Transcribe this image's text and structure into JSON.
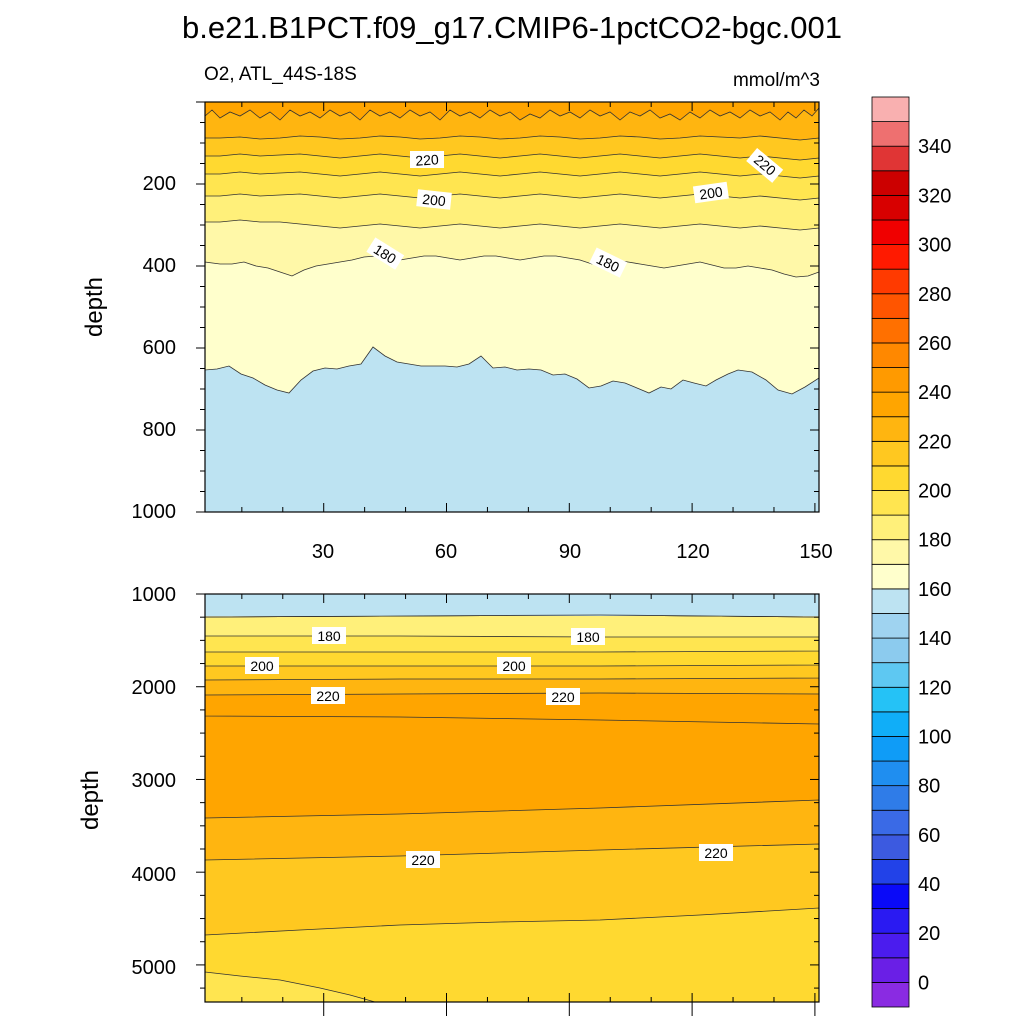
{
  "chart_data": {
    "type": "contour",
    "title": "b.e21.B1PCT.f09_g17.CMIP6-1pctCO2-bgc.001",
    "left_subtitle": "O2, ATL_44S-18S",
    "right_subtitle": "mmol/m^3",
    "ylabel": "depth",
    "xlabel": "",
    "x_ticks": [
      "30",
      "60",
      "90",
      "120",
      "150"
    ],
    "xlim": [
      1,
      151
    ],
    "panels": [
      {
        "name": "upper",
        "ylim": [
          0,
          1000
        ],
        "y_ticks": [
          "200",
          "400",
          "600",
          "800",
          "1000"
        ],
        "inline_labels": [
          "220",
          "220",
          "200",
          "200",
          "180",
          "180"
        ]
      },
      {
        "name": "lower",
        "ylim": [
          1000,
          5400
        ],
        "y_ticks": [
          "1000",
          "2000",
          "3000",
          "4000",
          "5000"
        ],
        "inline_labels": [
          "180",
          "180",
          "200",
          "200",
          "220",
          "220",
          "220",
          "220"
        ]
      }
    ],
    "colorbar": {
      "tick_labels": [
        "0",
        "20",
        "40",
        "60",
        "80",
        "100",
        "120",
        "140",
        "160",
        "180",
        "200",
        "220",
        "240",
        "260",
        "280",
        "300",
        "320",
        "340"
      ],
      "levels": [
        -10,
        0,
        10,
        20,
        30,
        40,
        50,
        60,
        70,
        80,
        90,
        100,
        110,
        120,
        130,
        140,
        150,
        160,
        170,
        180,
        190,
        200,
        210,
        220,
        230,
        240,
        250,
        260,
        270,
        280,
        290,
        300,
        310,
        320,
        330,
        340,
        350,
        360
      ],
      "colors": [
        "#8a2be2",
        "#6a1fe6",
        "#4b1cee",
        "#2a1af2",
        "#0a0af8",
        "#2242e8",
        "#3c5ae0",
        "#3a6ae6",
        "#2f7ce8",
        "#1f8ef0",
        "#0f9cf7",
        "#10aef8",
        "#25c2f6",
        "#5ec8f2",
        "#8ccbee",
        "#9fd3f0",
        "#bde3f2",
        "#ffffcc",
        "#fff8a8",
        "#fff07a",
        "#ffe550",
        "#ffd930",
        "#ffc820",
        "#ffb510",
        "#ffa500",
        "#ff9a00",
        "#ff8800",
        "#ff7000",
        "#ff5500",
        "#ff3a00",
        "#ff1a00",
        "#f00000",
        "#d80000",
        "#cc0000",
        "#e03535",
        "#ee7070",
        "#f9b0b0"
      ]
    }
  }
}
